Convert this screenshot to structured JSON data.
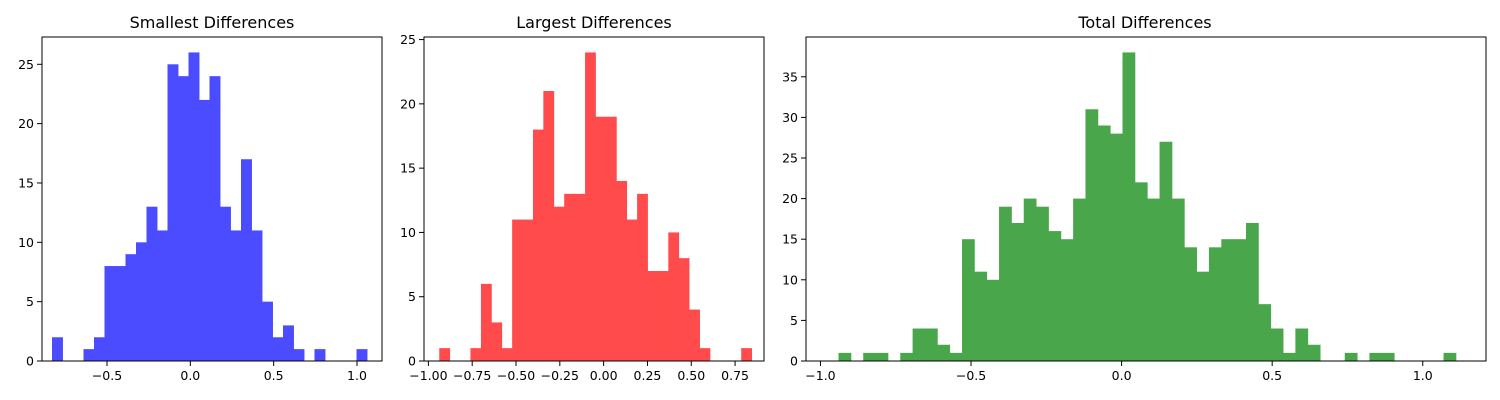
{
  "chart_data": [
    {
      "type": "bar",
      "title": "Smallest Differences",
      "color": "#4b4bff",
      "xlim": [
        -0.89,
        1.15
      ],
      "ylim": [
        0,
        27.3
      ],
      "bin_width": 0.0633,
      "bins_left": [
        -0.83,
        -0.767,
        -0.704,
        -0.641,
        -0.578,
        -0.515,
        -0.452,
        -0.389,
        -0.326,
        -0.263,
        -0.2,
        -0.137,
        -0.074,
        -0.011,
        0.052,
        0.115,
        0.178,
        0.241,
        0.304,
        0.367,
        0.43,
        0.493,
        0.556,
        0.619,
        0.682,
        0.745,
        0.808,
        0.871,
        0.934,
        0.997,
        1.06
      ],
      "values": [
        2,
        0,
        0,
        1,
        2,
        8,
        8,
        9,
        10,
        13,
        11,
        25,
        24,
        26,
        22,
        24,
        13,
        11,
        17,
        11,
        5,
        2,
        3,
        1,
        0,
        1,
        0,
        0,
        0,
        1,
        0
      ],
      "xticks": [
        -0.5,
        0.0,
        0.5,
        1.0
      ],
      "xtick_labels": [
        "−0.5",
        "0.0",
        "0.5",
        "1.0"
      ],
      "yticks": [
        0,
        5,
        10,
        15,
        20,
        25
      ],
      "ytick_labels": [
        "0",
        "5",
        "10",
        "15",
        "20",
        "25"
      ]
    },
    {
      "type": "bar",
      "title": "Largest Differences",
      "color": "#ff4b4b",
      "xlim": [
        -1.025,
        0.915
      ],
      "ylim": [
        0,
        25.2
      ],
      "bin_width": 0.0594,
      "bins_left": [
        -0.938,
        -0.879,
        -0.819,
        -0.76,
        -0.7,
        -0.641,
        -0.582,
        -0.522,
        -0.463,
        -0.403,
        -0.344,
        -0.284,
        -0.225,
        -0.166,
        -0.106,
        -0.047,
        0.013,
        0.072,
        0.131,
        0.191,
        0.25,
        0.31,
        0.369,
        0.428,
        0.488,
        0.547,
        0.607,
        0.666,
        0.726,
        0.785
      ],
      "values": [
        1,
        0,
        0,
        1,
        6,
        3,
        1,
        11,
        11,
        18,
        21,
        12,
        13,
        13,
        24,
        19,
        19,
        14,
        11,
        13,
        7,
        7,
        10,
        8,
        4,
        1,
        0,
        0,
        0,
        1
      ],
      "xticks": [
        -1.0,
        -0.75,
        -0.5,
        -0.25,
        0.0,
        0.25,
        0.5,
        0.75
      ],
      "xtick_labels": [
        "−1.00",
        "−0.75",
        "−0.50",
        "−0.25",
        "0.00",
        "0.25",
        "0.50",
        "0.75"
      ],
      "yticks": [
        0,
        5,
        10,
        15,
        20,
        25
      ],
      "ytick_labels": [
        "0",
        "5",
        "10",
        "15",
        "20",
        "25"
      ]
    },
    {
      "type": "bar",
      "title": "Total Differences",
      "color": "#4aa64a",
      "xlim": [
        -1.048,
        1.21
      ],
      "ylim": [
        0,
        39.9
      ],
      "bin_width": 0.0411,
      "bins_left": [
        -0.94,
        -0.899,
        -0.858,
        -0.817,
        -0.776,
        -0.735,
        -0.694,
        -0.653,
        -0.612,
        -0.571,
        -0.53,
        -0.489,
        -0.448,
        -0.407,
        -0.366,
        -0.325,
        -0.284,
        -0.243,
        -0.202,
        -0.161,
        -0.12,
        -0.079,
        -0.038,
        0.003,
        0.044,
        0.085,
        0.126,
        0.167,
        0.208,
        0.249,
        0.29,
        0.331,
        0.372,
        0.413,
        0.454,
        0.495,
        0.536,
        0.577,
        0.618,
        0.659,
        0.7,
        0.741,
        0.782,
        0.823,
        0.864,
        0.905,
        0.946,
        0.987,
        1.028,
        1.069
      ],
      "values": [
        1,
        0,
        1,
        1,
        0,
        1,
        4,
        4,
        2,
        1,
        15,
        11,
        10,
        19,
        17,
        20,
        19,
        16,
        15,
        20,
        31,
        29,
        28,
        38,
        22,
        20,
        27,
        20,
        14,
        11,
        14,
        15,
        15,
        17,
        7,
        4,
        1,
        4,
        2,
        0,
        0,
        1,
        0,
        1,
        1,
        0,
        0,
        0,
        0,
        1
      ],
      "xticks": [
        -1.0,
        -0.5,
        0.0,
        0.5,
        1.0
      ],
      "xtick_labels": [
        "−1.0",
        "−0.5",
        "0.0",
        "0.5",
        "1.0"
      ],
      "yticks": [
        0,
        5,
        10,
        15,
        20,
        25,
        30,
        35
      ],
      "ytick_labels": [
        "0",
        "5",
        "10",
        "15",
        "20",
        "25",
        "30",
        "35"
      ]
    }
  ]
}
